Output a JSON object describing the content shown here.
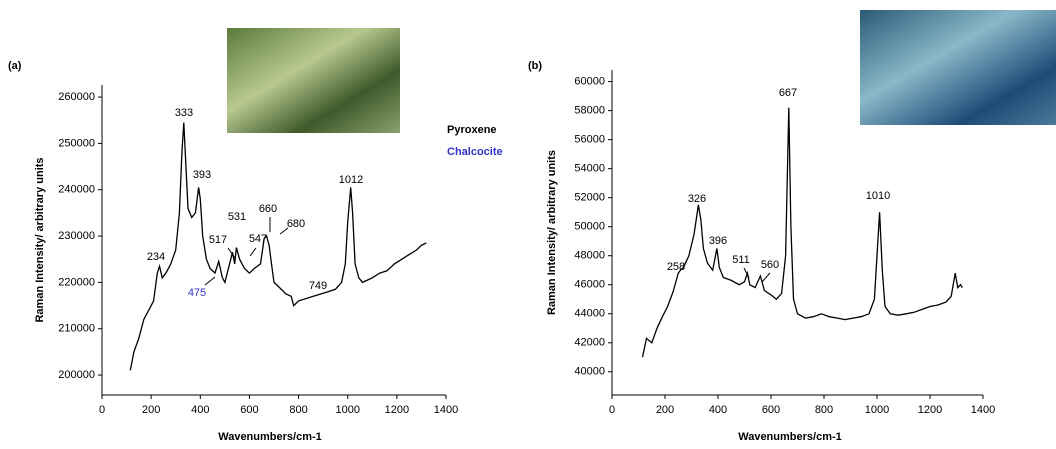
{
  "chart_data": [
    {
      "type": "line",
      "panel_label": "(a)",
      "color": "#000000",
      "y_label": "Raman Intensity/ arbitrary units",
      "x_label": "Wavenumbers/cm-1",
      "x": [
        115,
        130,
        150,
        170,
        190,
        210,
        225,
        234,
        245,
        260,
        280,
        300,
        315,
        325,
        333,
        340,
        350,
        365,
        380,
        393,
        400,
        410,
        425,
        440,
        460,
        475,
        490,
        500,
        517,
        531,
        540,
        547,
        560,
        580,
        600,
        620,
        645,
        660,
        670,
        680,
        690,
        700,
        720,
        749,
        770,
        780,
        800,
        830,
        860,
        890,
        920,
        950,
        975,
        990,
        1000,
        1012,
        1020,
        1030,
        1045,
        1060,
        1080,
        1100,
        1130,
        1160,
        1190,
        1220,
        1250,
        1280,
        1300,
        1320
      ],
      "values": [
        201000,
        205000,
        208000,
        212000,
        214000,
        216000,
        222000,
        223500,
        221000,
        222000,
        224000,
        227000,
        235000,
        248000,
        254500,
        247000,
        236000,
        234000,
        235000,
        240500,
        238000,
        230000,
        225000,
        223000,
        222000,
        224500,
        221000,
        220000,
        223500,
        226500,
        224000,
        227500,
        225000,
        223000,
        222000,
        223000,
        224000,
        229500,
        230000,
        228000,
        224000,
        220000,
        219000,
        217500,
        217000,
        215000,
        216000,
        216500,
        217000,
        217500,
        218000,
        218500,
        220000,
        224000,
        233000,
        240500,
        235000,
        224000,
        221000,
        220000,
        220500,
        221000,
        222000,
        222500,
        224000,
        225000,
        226000,
        227000,
        228000,
        228500
      ],
      "xlim": [
        0,
        1400
      ],
      "xticks": [
        0,
        200,
        400,
        600,
        800,
        1000,
        1200,
        1400
      ],
      "ylim": [
        195700,
        262600
      ],
      "yticks": [
        200000,
        210000,
        220000,
        230000,
        240000,
        250000,
        260000
      ],
      "annotations": [
        {
          "text": "333",
          "color": "#000000"
        },
        {
          "text": "393",
          "color": "#000000"
        },
        {
          "text": "234",
          "color": "#000000"
        },
        {
          "text": "531",
          "color": "#000000"
        },
        {
          "text": "517",
          "color": "#000000"
        },
        {
          "text": "547",
          "color": "#000000"
        },
        {
          "text": "660",
          "color": "#000000"
        },
        {
          "text": "680",
          "color": "#000000"
        },
        {
          "text": "749",
          "color": "#000000"
        },
        {
          "text": "1012",
          "color": "#000000"
        },
        {
          "text": "475",
          "color": "#3333cc"
        }
      ],
      "labels": [
        {
          "text": "Pyroxene",
          "color": "#000000"
        },
        {
          "text": "Chalcocite",
          "color": "#3333cc"
        }
      ]
    },
    {
      "type": "line",
      "panel_label": "(b)",
      "color": "#000000",
      "y_label": "Raman Intensity/ arbitrary units",
      "x_label": "Wavenumbers/cm-1",
      "x": [
        115,
        130,
        150,
        170,
        190,
        210,
        230,
        250,
        258,
        270,
        290,
        310,
        326,
        335,
        345,
        360,
        380,
        396,
        405,
        420,
        450,
        480,
        500,
        511,
        520,
        540,
        560,
        575,
        600,
        620,
        640,
        655,
        667,
        675,
        685,
        700,
        730,
        760,
        790,
        820,
        850,
        880,
        910,
        940,
        970,
        990,
        1000,
        1010,
        1020,
        1030,
        1050,
        1080,
        1110,
        1140,
        1170,
        1200,
        1230,
        1260,
        1280,
        1295,
        1305,
        1315,
        1322
      ],
      "values": [
        41000,
        42300,
        42000,
        43000,
        43800,
        44500,
        45500,
        46800,
        47000,
        47200,
        48000,
        49500,
        51500,
        50500,
        48500,
        47500,
        47000,
        48500,
        47200,
        46500,
        46300,
        46000,
        46200,
        46800,
        46000,
        45800,
        46600,
        45600,
        45300,
        45000,
        45400,
        48000,
        58200,
        50000,
        45000,
        44000,
        43700,
        43800,
        44000,
        43800,
        43700,
        43600,
        43700,
        43800,
        44000,
        45000,
        48000,
        51000,
        47000,
        44500,
        44000,
        43900,
        44000,
        44100,
        44300,
        44500,
        44600,
        44800,
        45200,
        46800,
        45800,
        46000,
        45800
      ],
      "xlim": [
        0,
        1400
      ],
      "xticks": [
        0,
        200,
        400,
        600,
        800,
        1000,
        1200,
        1400
      ],
      "ylim": [
        38400,
        60800
      ],
      "yticks": [
        40000,
        42000,
        44000,
        46000,
        48000,
        50000,
        52000,
        54000,
        56000,
        58000,
        60000
      ],
      "annotations": [
        {
          "text": "326",
          "color": "#000000"
        },
        {
          "text": "396",
          "color": "#000000"
        },
        {
          "text": "258",
          "color": "#000000"
        },
        {
          "text": "511",
          "color": "#000000"
        },
        {
          "text": "560",
          "color": "#000000"
        },
        {
          "text": "667",
          "color": "#000000"
        },
        {
          "text": "1010",
          "color": "#000000"
        }
      ]
    }
  ]
}
